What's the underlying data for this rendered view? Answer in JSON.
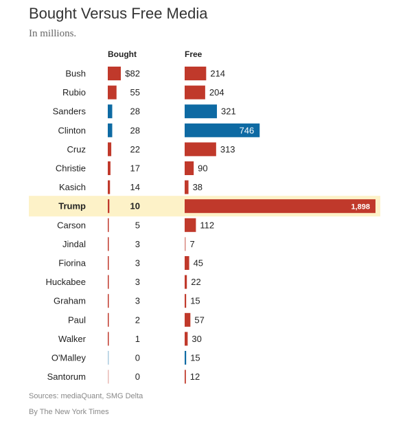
{
  "header": {
    "title": "Bought Versus Free Media",
    "subtitle": "In millions."
  },
  "footer": {
    "source": "Sources: mediaQuant, SMG Delta",
    "credit": "By The New York Times"
  },
  "colors": {
    "republican": "#c0392b",
    "democrat": "#0e6aa3",
    "highlight": "#fdf2c8"
  },
  "chart_data": {
    "type": "bar",
    "highlighted_category": "Trump",
    "categories": [
      "Bush",
      "Rubio",
      "Sanders",
      "Clinton",
      "Cruz",
      "Christie",
      "Kasich",
      "Trump",
      "Carson",
      "Jindal",
      "Fiorina",
      "Huckabee",
      "Graham",
      "Paul",
      "Walker",
      "O'Malley",
      "Santorum"
    ],
    "party": [
      "R",
      "R",
      "D",
      "D",
      "R",
      "R",
      "R",
      "R",
      "R",
      "R",
      "R",
      "R",
      "R",
      "R",
      "R",
      "D",
      "R"
    ],
    "series": [
      {
        "name": "Bought",
        "values": [
          82,
          55,
          28,
          28,
          22,
          17,
          14,
          10,
          5,
          3,
          3,
          3,
          3,
          2,
          1,
          0,
          0
        ],
        "labels": [
          "$82",
          "55",
          "28",
          "28",
          "22",
          "17",
          "14",
          "10",
          "5",
          "3",
          "3",
          "3",
          "3",
          "2",
          "1",
          "0",
          "0"
        ]
      },
      {
        "name": "Free",
        "values": [
          214,
          204,
          321,
          746,
          313,
          90,
          38,
          1898,
          112,
          7,
          45,
          22,
          15,
          57,
          30,
          15,
          12
        ],
        "labels": [
          "214",
          "204",
          "321",
          "746",
          "313",
          "90",
          "38",
          "1,898",
          "112",
          "7",
          "45",
          "22",
          "15",
          "57",
          "30",
          "15",
          "12"
        ]
      }
    ]
  }
}
